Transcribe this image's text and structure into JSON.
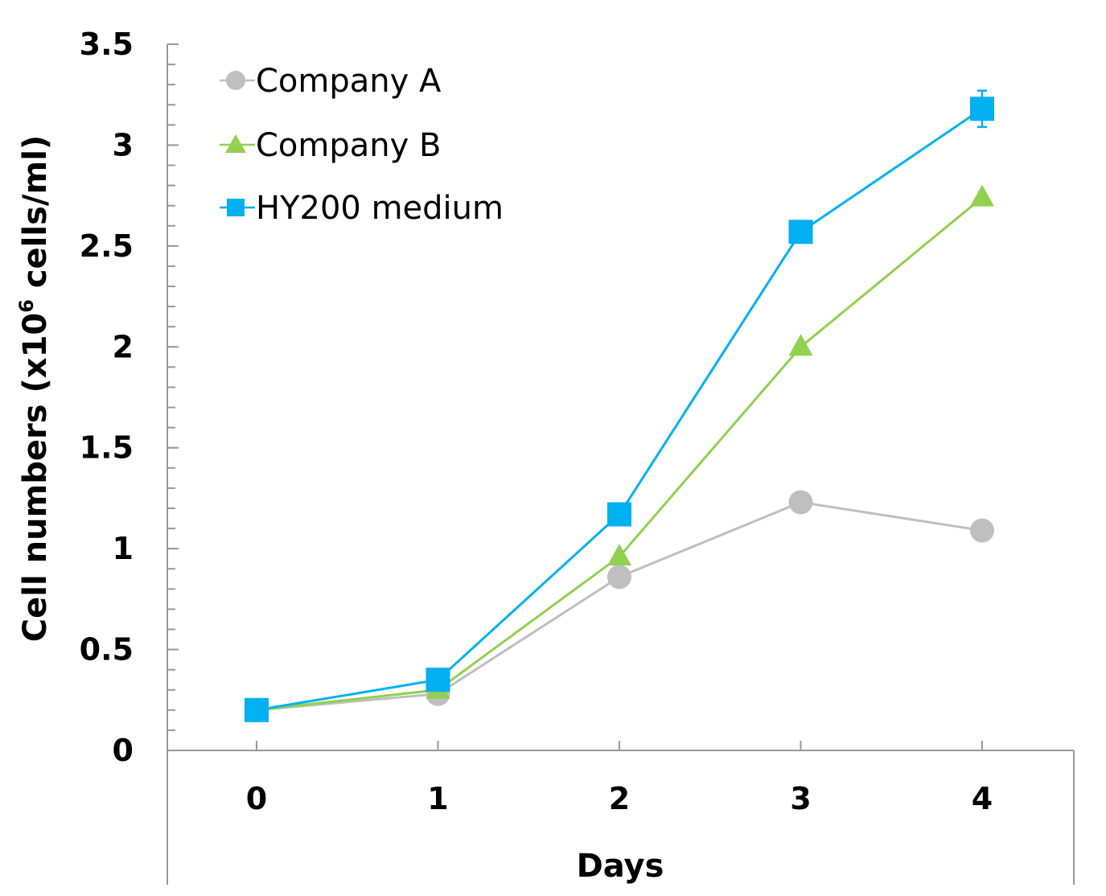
{
  "chart_data": {
    "type": "line",
    "title": "",
    "xlabel": "Days",
    "ylabel_parts": {
      "prefix": "Cell numbers (x10",
      "superscript": "6",
      "suffix": " cells/ml)"
    },
    "x": [
      0,
      1,
      2,
      3,
      4
    ],
    "x_tick_labels": [
      "0",
      "1",
      "2",
      "3",
      "4"
    ],
    "ylim": [
      0,
      3.5
    ],
    "y_ticks": [
      0,
      0.5,
      1,
      1.5,
      2,
      2.5,
      3,
      3.5
    ],
    "y_tick_labels": [
      "0",
      "0.5",
      "1",
      "1.5",
      "2",
      "2.5",
      "3",
      "3.5"
    ],
    "y_minor_step": 0.1,
    "grid": false,
    "legend_position": "top-left",
    "series": [
      {
        "name": "Company A",
        "marker": "circle",
        "color": "#bfbfbf",
        "values": [
          0.2,
          0.28,
          0.86,
          1.23,
          1.09
        ]
      },
      {
        "name": "Company B",
        "marker": "triangle",
        "color": "#92d050",
        "values": [
          0.2,
          0.3,
          0.96,
          2.0,
          2.74
        ]
      },
      {
        "name": "HY200 medium",
        "marker": "square",
        "color": "#00b0f0",
        "values": [
          0.2,
          0.35,
          1.17,
          2.57,
          3.18
        ],
        "error": [
          0,
          0,
          0,
          0,
          0.09
        ]
      }
    ]
  }
}
